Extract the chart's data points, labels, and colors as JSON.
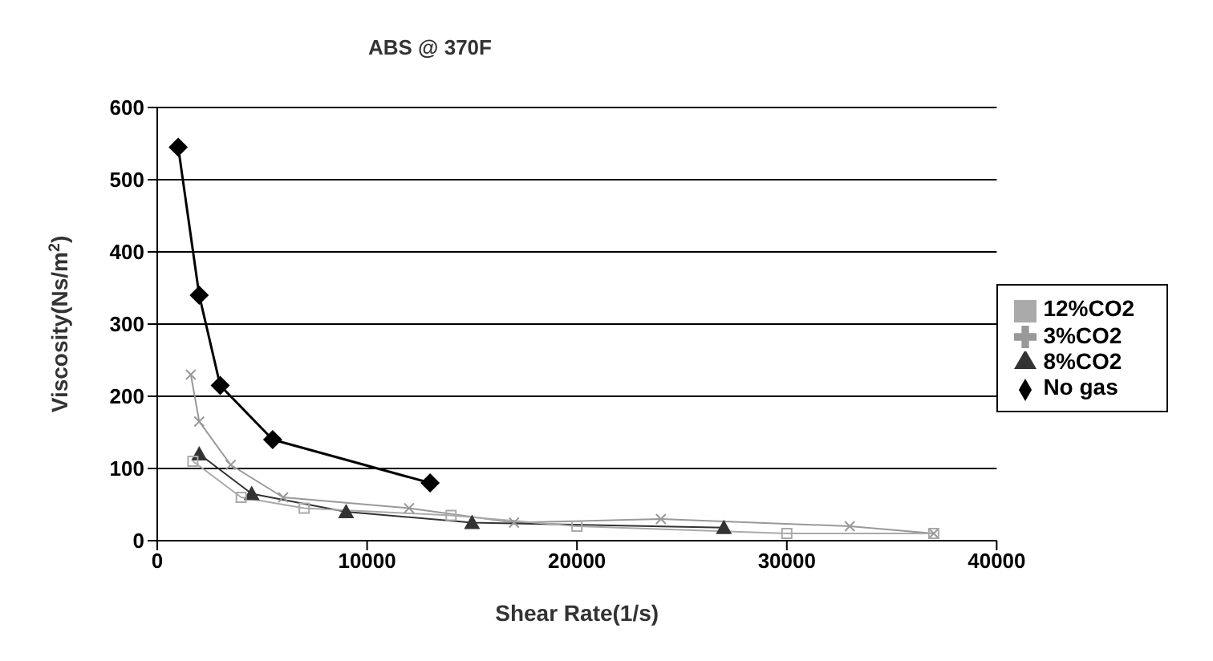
{
  "chart_data": {
    "type": "line",
    "title": "ABS @ 370F",
    "xlabel": "Shear Rate(1/s)",
    "ylabel": "Viscosity(Ns/m$^{2}$)",
    "xlim": [
      0,
      40000
    ],
    "xticks": [
      0,
      10000,
      20000,
      30000,
      40000
    ],
    "ylim": [
      0,
      600
    ],
    "yticks": [
      0,
      100,
      200,
      300,
      400,
      500,
      600
    ],
    "grid": "y",
    "legend": "right",
    "line_style": "solid",
    "series": [
      {
        "name": "No gas",
        "color": "#000000",
        "marker": "diamond",
        "x": [
          1000,
          2000,
          3000,
          5500,
          13000
        ],
        "values": [
          545,
          340,
          215,
          140,
          80
        ]
      },
      {
        "name": "3%CO2",
        "color": "#999999",
        "marker": "cross",
        "x": [
          1600,
          2000,
          3500,
          6000,
          12000,
          17000,
          24000,
          33000,
          37000
        ],
        "values": [
          230,
          165,
          105,
          60,
          45,
          25,
          30,
          20,
          10
        ]
      },
      {
        "name": "8%CO2",
        "color": "#333333",
        "marker": "triangle",
        "x": [
          2000,
          4500,
          9000,
          15000,
          27000
        ],
        "values": [
          120,
          65,
          40,
          25,
          18
        ]
      },
      {
        "name": "12%CO2",
        "color": "#aaaaaa",
        "marker": "square",
        "x": [
          1700,
          4000,
          7000,
          14000,
          20000,
          30000,
          37000
        ],
        "values": [
          110,
          60,
          45,
          35,
          20,
          10,
          10
        ]
      }
    ]
  }
}
